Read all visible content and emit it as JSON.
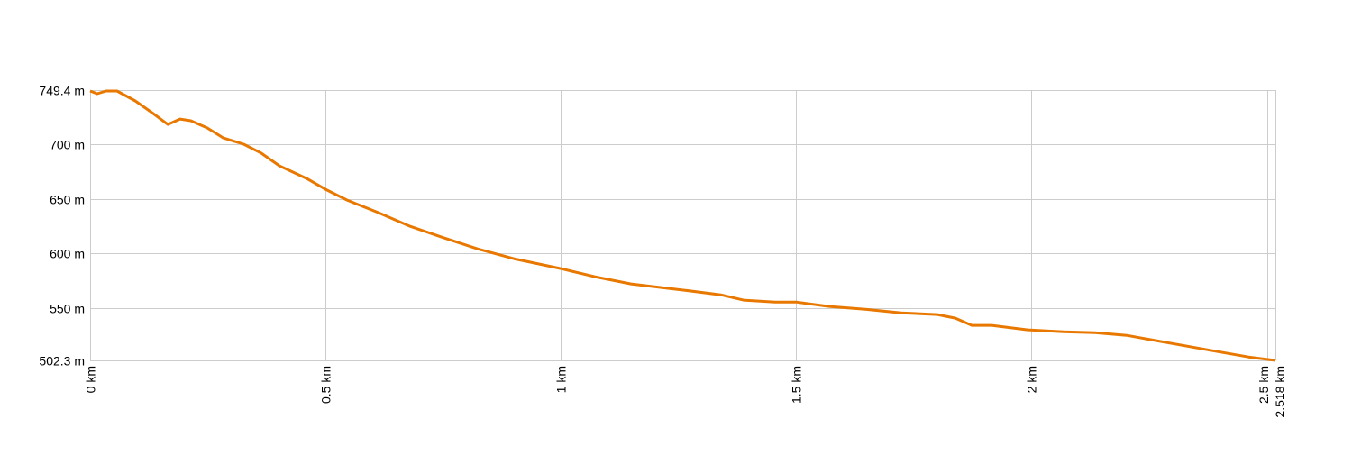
{
  "chart_data": {
    "type": "line",
    "title": "",
    "xlabel": "",
    "ylabel": "",
    "xlim": [
      0,
      2.518
    ],
    "ylim": [
      502.3,
      749.4
    ],
    "grid": true,
    "line_color": "#e87800",
    "grid_color": "#cccccc",
    "x_ticks": [
      {
        "value": 0,
        "label": "0 km"
      },
      {
        "value": 0.5,
        "label": "0.5 km"
      },
      {
        "value": 1,
        "label": "1 km"
      },
      {
        "value": 1.5,
        "label": "1.5 km"
      },
      {
        "value": 2,
        "label": "2 km"
      },
      {
        "value": 2.5,
        "label": "2.5 km"
      },
      {
        "value": 2.518,
        "label": "2.518 km"
      }
    ],
    "y_ticks": [
      {
        "value": 749.4,
        "label": "749.4 m"
      },
      {
        "value": 700,
        "label": "700 m"
      },
      {
        "value": 650,
        "label": "650 m"
      },
      {
        "value": 600,
        "label": "600 m"
      },
      {
        "value": 550,
        "label": "550 m"
      },
      {
        "value": 502.3,
        "label": "502.3 m"
      }
    ],
    "series": [
      {
        "x": [
          0,
          0.015,
          0.034,
          0.057,
          0.096,
          0.134,
          0.165,
          0.191,
          0.214,
          0.249,
          0.283,
          0.326,
          0.364,
          0.402,
          0.46,
          0.5,
          0.546,
          0.613,
          0.68,
          0.747,
          0.823,
          0.9,
          1.0,
          1.072,
          1.149,
          1.264,
          1.34,
          1.388,
          1.455,
          1.5,
          1.57,
          1.647,
          1.723,
          1.8,
          1.838,
          1.873,
          1.915,
          1.992,
          2.068,
          2.135,
          2.202,
          2.298,
          2.384,
          2.461,
          2.518
        ],
        "y": [
          748.6,
          746.1,
          748.6,
          748.6,
          739.5,
          728,
          718,
          723,
          721.4,
          714.8,
          705.7,
          700,
          691.7,
          680.2,
          668.6,
          658.7,
          648.8,
          637.3,
          624.9,
          615,
          604.3,
          595.3,
          586.2,
          578.8,
          572.2,
          566.4,
          562.3,
          557.4,
          555.7,
          555.7,
          551.6,
          549.1,
          545.8,
          544.2,
          540.9,
          534.3,
          534.3,
          530.2,
          528.5,
          527.7,
          525.2,
          517.8,
          511.2,
          505.4,
          502.3
        ]
      }
    ]
  }
}
